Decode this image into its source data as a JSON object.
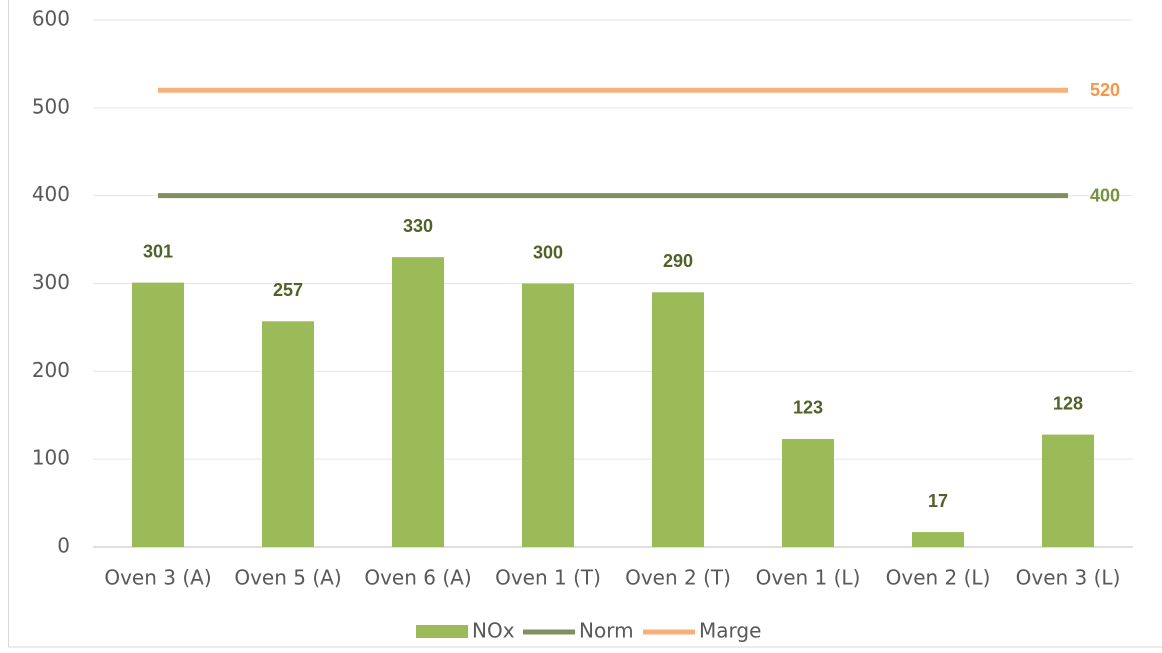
{
  "chart_data": {
    "type": "bar",
    "categories": [
      "Oven 3 (A)",
      "Oven 5 (A)",
      "Oven 6 (A)",
      "Oven 1 (T)",
      "Oven 2 (T)",
      "Oven 1 (L)",
      "Oven 2 (L)",
      "Oven 3 (L)"
    ],
    "series": [
      {
        "name": "NOx",
        "type": "bar",
        "color": "#9bbb59",
        "label_color": "#4f6228",
        "values": [
          301,
          257,
          330,
          300,
          290,
          123,
          17,
          128
        ]
      },
      {
        "name": "Norm",
        "type": "line",
        "color": "#808f5e",
        "label_color": "#76923c",
        "values": [
          400,
          400,
          400,
          400,
          400,
          400,
          400,
          400
        ]
      },
      {
        "name": "Marge",
        "type": "line",
        "color": "#f8b07a",
        "label_color": "#f79646",
        "values": [
          520,
          520,
          520,
          520,
          520,
          520,
          520,
          520
        ]
      }
    ],
    "ylim": [
      0,
      600
    ],
    "yticks": [
      0,
      100,
      200,
      300,
      400,
      500,
      600
    ],
    "grid": true,
    "legend": "bottom"
  }
}
